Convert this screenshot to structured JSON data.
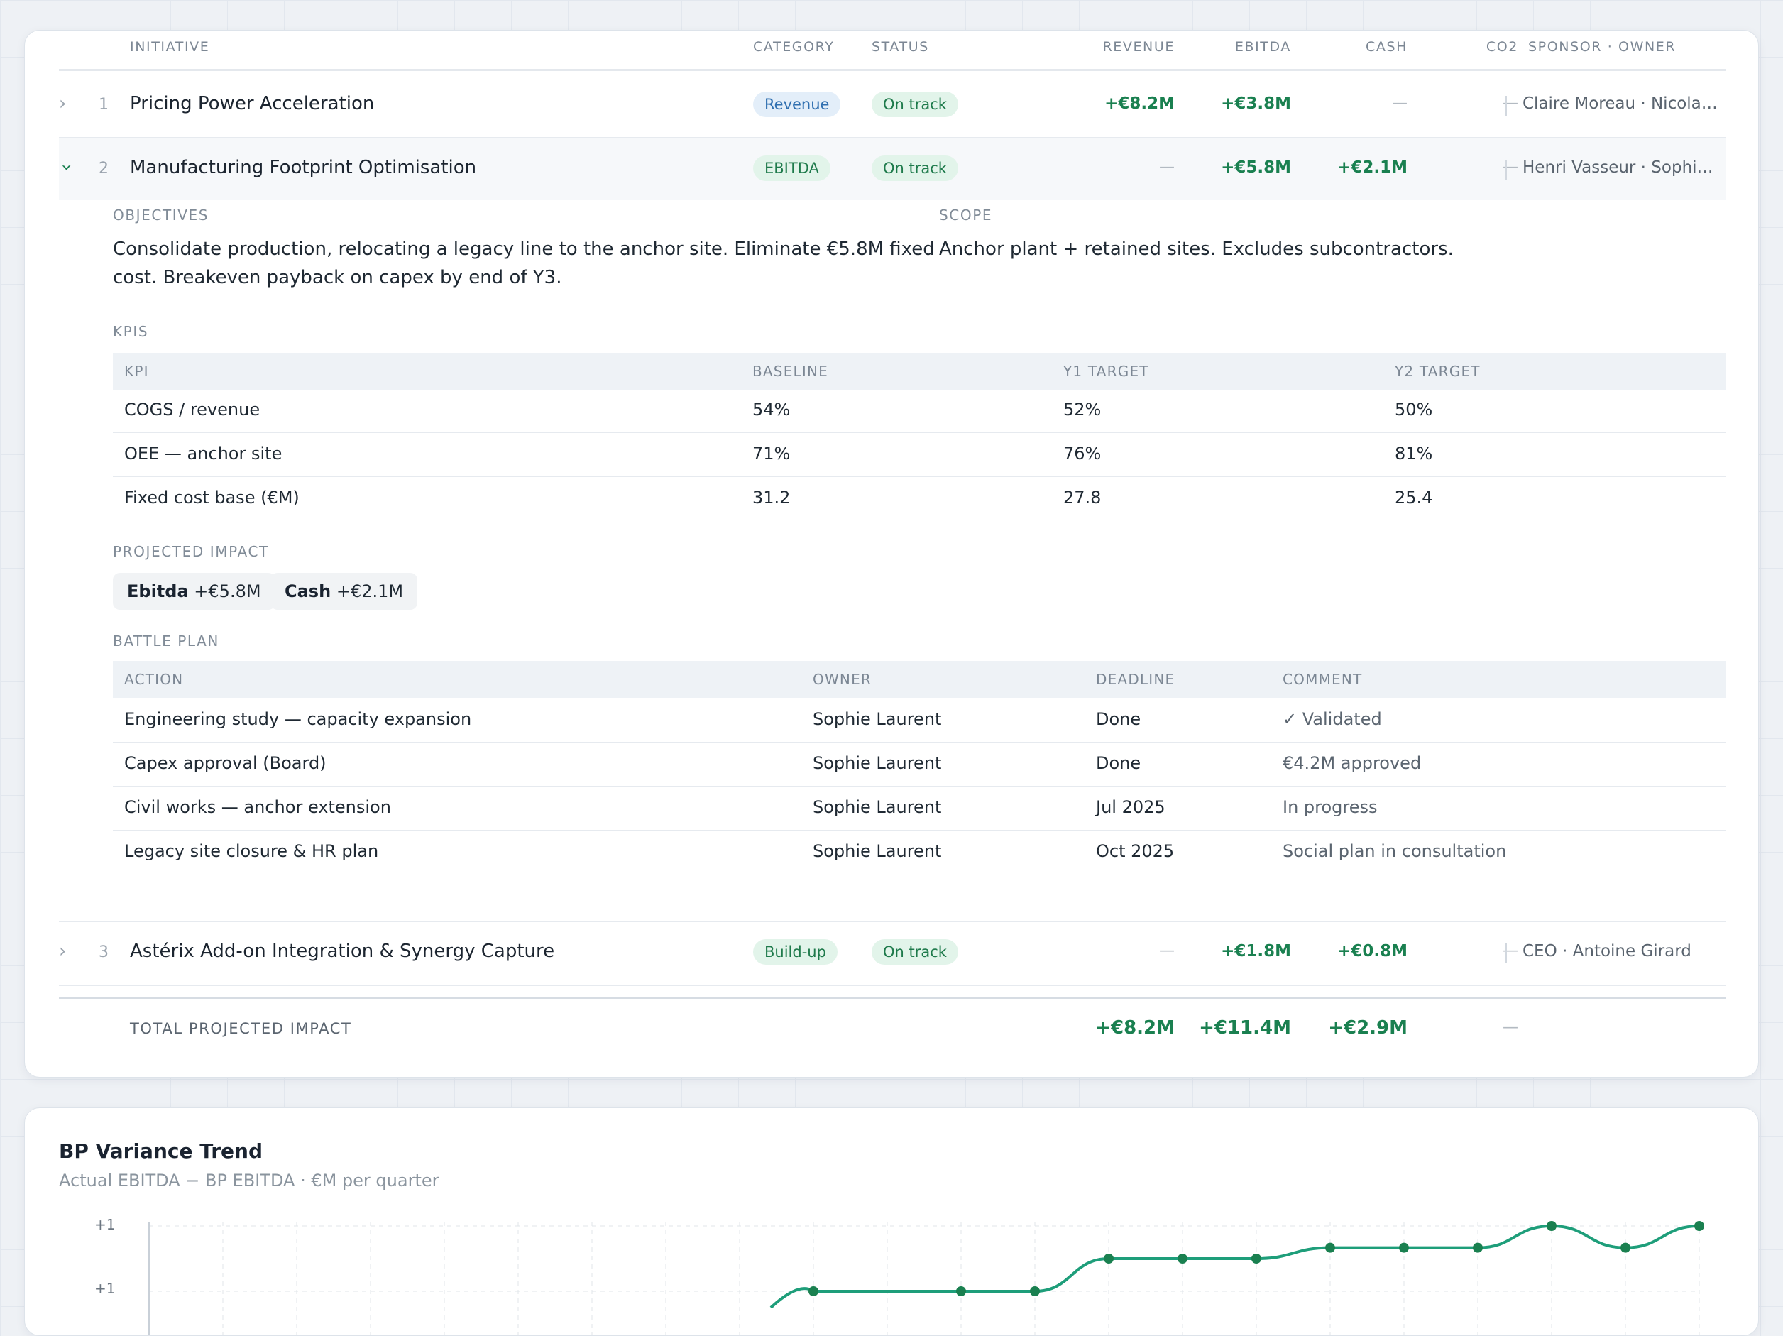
{
  "table": {
    "headers": {
      "initiative": "INITIATIVE",
      "category": "CATEGORY",
      "status": "STATUS",
      "revenue": "REVENUE",
      "ebitda": "EBITDA",
      "cash": "CASH",
      "co2": "CO2",
      "sponsor_owner": "SPONSOR · OWNER"
    },
    "rows": [
      {
        "num": "1",
        "name": "Pricing Power Acceleration",
        "category": "Revenue",
        "status": "On track",
        "revenue": "+€8.2M",
        "ebitda": "+€3.8M",
        "cash": "—",
        "co2": "—",
        "owner": "Claire Moreau · Nicolas Fabre",
        "expanded": false
      },
      {
        "num": "2",
        "name": "Manufacturing Footprint Optimisation",
        "category": "EBITDA",
        "status": "On track",
        "revenue": "—",
        "ebitda": "+€5.8M",
        "cash": "+€2.1M",
        "co2": "—",
        "owner": "Henri Vasseur · Sophie Laurent",
        "expanded": true
      },
      {
        "num": "3",
        "name": "Astérix Add-on Integration & Synergy Capture",
        "category": "Build-up",
        "status": "On track",
        "revenue": "—",
        "ebitda": "+€1.8M",
        "cash": "+€0.8M",
        "co2": "—",
        "owner": "CEO · Antoine Girard",
        "expanded": false
      }
    ],
    "total": {
      "label": "TOTAL PROJECTED IMPACT",
      "revenue": "+€8.2M",
      "ebitda": "+€11.4M",
      "cash": "+€2.9M",
      "co2": "—"
    }
  },
  "detail": {
    "objectives_label": "OBJECTIVES",
    "objectives_text": "Consolidate production, relocating a legacy line to the anchor site. Eliminate €5.8M fixed cost. Breakeven payback on capex by end of Y3.",
    "scope_label": "SCOPE",
    "scope_text": "Anchor plant + retained sites. Excludes subcontractors.",
    "kpis_label": "KPIS",
    "kpi_headers": [
      "KPI",
      "BASELINE",
      "Y1 TARGET",
      "Y2 TARGET"
    ],
    "kpis": [
      {
        "kpi": "COGS / revenue",
        "baseline": "54%",
        "y1": "52%",
        "y2": "50%"
      },
      {
        "kpi": "OEE — anchor site",
        "baseline": "71%",
        "y1": "76%",
        "y2": "81%"
      },
      {
        "kpi": "Fixed cost base (€M)",
        "baseline": "31.2",
        "y1": "27.8",
        "y2": "25.4"
      }
    ],
    "impact_label": "PROJECTED IMPACT",
    "impact_chips": [
      {
        "label": "Ebitda",
        "value": "+€5.8M"
      },
      {
        "label": "Cash",
        "value": "+€2.1M"
      }
    ],
    "battle_label": "BATTLE PLAN",
    "battle_headers": [
      "ACTION",
      "OWNER",
      "DEADLINE",
      "COMMENT"
    ],
    "battle": [
      {
        "action": "Engineering study — capacity expansion",
        "owner": "Sophie Laurent",
        "deadline": "Done",
        "comment": "✓ Validated"
      },
      {
        "action": "Capex approval (Board)",
        "owner": "Sophie Laurent",
        "deadline": "Done",
        "comment": "€4.2M approved"
      },
      {
        "action": "Civil works — anchor extension",
        "owner": "Sophie Laurent",
        "deadline": "Jul 2025",
        "comment": "In progress"
      },
      {
        "action": "Legacy site closure & HR plan",
        "owner": "Sophie Laurent",
        "deadline": "Oct 2025",
        "comment": "Social plan in consultation"
      }
    ]
  },
  "colors": {
    "accent_green": "#1a8050",
    "line_teal": "#1e9e7a",
    "pill_blue_bg": "#e3eef9",
    "pill_green_bg": "#e2f4ea"
  },
  "chart_data": {
    "type": "line",
    "title": "BP Variance Trend",
    "subtitle": "Actual EBITDA − BP EBITDA · €M per quarter",
    "y_tick_labels": [
      "+1",
      "+1"
    ],
    "series": [
      {
        "values_visible_partial": [
          null,
          null,
          null,
          null,
          null,
          null,
          null,
          null,
          null,
          0.0,
          null,
          0.0,
          0.0,
          0.3,
          0.3,
          0.3,
          0.4,
          0.4,
          0.4,
          0.6,
          0.4,
          0.6
        ]
      }
    ],
    "grid": true
  }
}
